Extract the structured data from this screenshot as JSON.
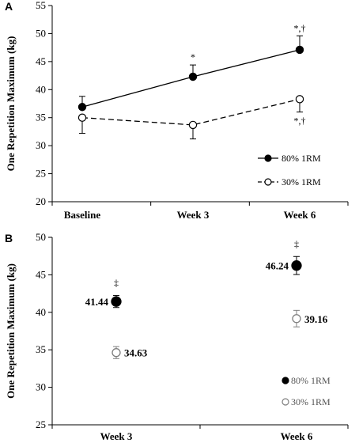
{
  "chart_data": [
    {
      "panel": "A",
      "type": "line",
      "categories": [
        "Baseline",
        "Week 3",
        "Week 6"
      ],
      "ylabel": "One Repetition Maximum (kg)",
      "ylim": [
        20,
        55
      ],
      "yticks": [
        20,
        25,
        30,
        35,
        40,
        45,
        50,
        55
      ],
      "grid": false,
      "legend_position": "bottom-right",
      "series": [
        {
          "name": "80% 1RM",
          "marker": "filled-circle",
          "line": "solid",
          "color": "#000000",
          "values": [
            36.9,
            42.3,
            47.1
          ],
          "errors": [
            1.9,
            2.1,
            2.5
          ],
          "error_direction": "up",
          "annotations": [
            "",
            "*",
            "*,†"
          ]
        },
        {
          "name": "30% 1RM",
          "marker": "open-circle",
          "line": "dashed",
          "color": "#000000",
          "values": [
            35.0,
            33.7,
            38.3
          ],
          "errors": [
            2.8,
            2.5,
            2.3
          ],
          "error_direction": "down",
          "annotations": [
            "",
            "",
            "*,†"
          ]
        }
      ]
    },
    {
      "panel": "B",
      "type": "scatter",
      "categories": [
        "Week 3",
        "Week 6"
      ],
      "ylabel": "One Repetition Maximum (kg)",
      "ylim": [
        25,
        50
      ],
      "yticks": [
        25,
        30,
        35,
        40,
        45,
        50
      ],
      "grid": false,
      "legend_position": "bottom-right",
      "series": [
        {
          "name": "80% 1RM",
          "marker": "filled-circle",
          "color": "#000000",
          "values": [
            41.44,
            46.24
          ],
          "labels": [
            "41.44",
            "46.24"
          ],
          "errors": [
            0.8,
            1.2
          ],
          "annotations": [
            "‡",
            "‡"
          ]
        },
        {
          "name": "30% 1RM",
          "marker": "open-circle",
          "color": "#7f7f7f",
          "values": [
            34.63,
            39.16
          ],
          "labels": [
            "34.63",
            "39.16"
          ],
          "errors": [
            0.8,
            1.1
          ],
          "annotations": [
            "",
            ""
          ]
        }
      ]
    }
  ]
}
